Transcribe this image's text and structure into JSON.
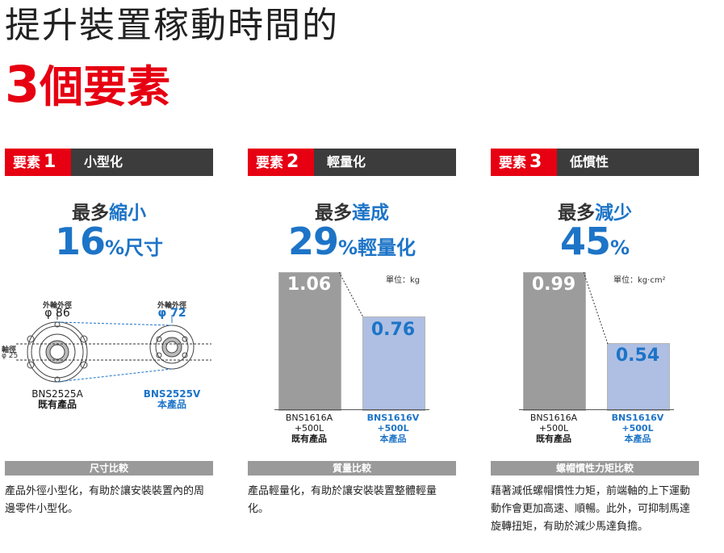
{
  "header": {
    "title_line1": "提升裝置稼動時間的",
    "title_line2_num": "3",
    "title_line2_rest": "個要素"
  },
  "colors": {
    "accent_red": "#e60012",
    "accent_blue": "#1d74c7",
    "bar_grey": "#9c9c9c",
    "bar_blue": "#aebfe3"
  },
  "factors": [
    {
      "tag": "要素",
      "num": "1",
      "name": "小型化",
      "lead_a": "最多",
      "lead_b": "縮小",
      "big_num": "16",
      "big_unit": "%",
      "big_sub": "尺寸",
      "diagram": {
        "left_label_top": "外輪外徑",
        "left_value": "φ 86",
        "right_label_top": "外輪外徑",
        "right_value": "φ 72",
        "shaft_label": "軸徑",
        "shaft_value": "φ 25",
        "left_model": "BNS2525A",
        "left_type": "既有產品",
        "right_model": "BNS2525V",
        "right_type": "本產品"
      },
      "footer": "尺寸比較",
      "desc": "產品外徑小型化，有助於讓安裝裝置內的周邊零件小型化。"
    },
    {
      "tag": "要素",
      "num": "2",
      "name": "輕量化",
      "lead_a": "最多",
      "lead_b": "達成",
      "big_num": "29",
      "big_unit": "%",
      "big_sub": "輕量化",
      "unit_label": "單位：kg",
      "bar_left_value": "1.06",
      "bar_right_value": "0.76",
      "left_label": [
        "BNS1616A",
        "+500L",
        "既有產品"
      ],
      "right_label": [
        "BNS1616V",
        "+500L",
        "本產品"
      ],
      "footer": "質量比較",
      "desc": "產品輕量化，有助於讓安裝裝置整體輕量化。"
    },
    {
      "tag": "要素",
      "num": "3",
      "name": "低慣性",
      "lead_a": "最多",
      "lead_b": "減少",
      "big_num": "45",
      "big_unit": "%",
      "big_sub": "",
      "unit_label": "單位：kg·cm²",
      "bar_left_value": "0.99",
      "bar_right_value": "0.54",
      "left_label": [
        "BNS1616A",
        "+500L",
        "既有產品"
      ],
      "right_label": [
        "BNS1616V",
        "+500L",
        "本產品"
      ],
      "footer": "螺帽慣性力矩比較",
      "desc": "藉著減低螺帽慣性力矩，前端軸的上下運動動作會更加高速、順暢。此外，可抑制馬達旋轉扭矩，有助於減少馬達負擔。"
    }
  ]
}
